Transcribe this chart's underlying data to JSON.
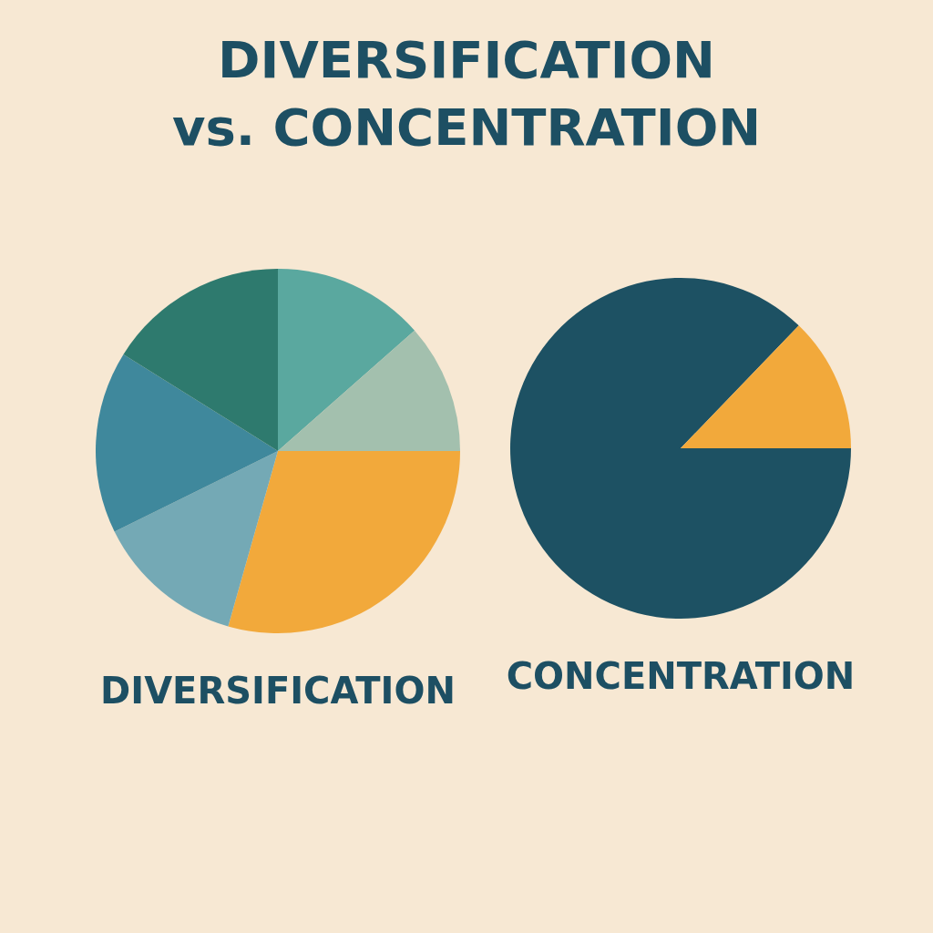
{
  "chart_data": [
    {
      "type": "other",
      "title": "DIVERSIFICATION vs. CONCENTRATION"
    },
    {
      "type": "pie",
      "title": "DIVERSIFICATION",
      "categories": [
        null,
        null,
        null,
        null,
        null,
        null
      ],
      "values": [
        13.5,
        11.5,
        29.4,
        13.3,
        16.2,
        16.1
      ],
      "colors": [
        "#5aa89f",
        "#a3c0ae",
        "#f2a93b",
        "#74a9b5",
        "#3f889c",
        "#2e7a6e"
      ]
    },
    {
      "type": "pie",
      "title": "CONCENTRATION",
      "categories": [
        null,
        null
      ],
      "values": [
        87.2,
        12.8
      ],
      "colors": [
        "#1d5163",
        "#f2a93b"
      ]
    }
  ]
}
